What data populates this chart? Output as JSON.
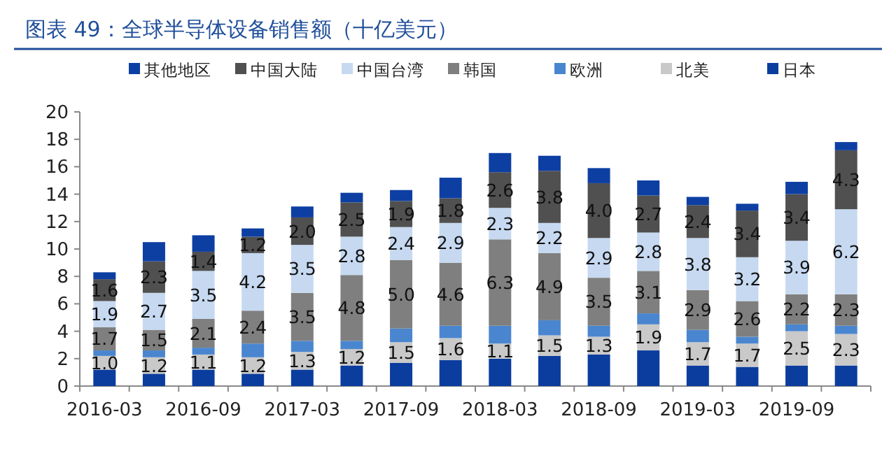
{
  "chart_data": {
    "type": "bar",
    "title": "图表 49：全球半导体设备销售额（十亿美元）",
    "stacked": true,
    "legend": "top",
    "categories": [
      "2016-03",
      null,
      "2016-09",
      null,
      "2017-03",
      null,
      "2017-09",
      null,
      "2018-03",
      null,
      "2018-09",
      null,
      "2019-03",
      null,
      "2019-09",
      null
    ],
    "ylim": [
      0,
      20
    ],
    "yticks": [
      0,
      2,
      4,
      6,
      8,
      10,
      12,
      14,
      16,
      18,
      20
    ],
    "series": [
      {
        "name": "日本",
        "color": "#0b3d9e",
        "values": [
          1.2,
          0.9,
          1.2,
          0.9,
          1.2,
          1.5,
          1.7,
          1.9,
          2.0,
          2.2,
          2.3,
          2.6,
          1.5,
          1.4,
          1.5,
          1.5
        ]
      },
      {
        "name": "北美",
        "color": "#c9c9c9",
        "values": [
          1.0,
          1.2,
          1.1,
          1.2,
          1.3,
          1.2,
          1.5,
          1.6,
          1.1,
          1.5,
          1.3,
          1.9,
          1.7,
          1.7,
          2.5,
          2.3
        ],
        "value_labels": [
          "1.0",
          "1.2",
          "1.1",
          "1.2",
          "1.3",
          "1.2",
          "1.5",
          "1.6",
          "1.1",
          "1.5",
          "1.3",
          "1.9",
          "1.7",
          "1.7",
          "2.5",
          "2.3"
        ]
      },
      {
        "name": "欧洲",
        "color": "#4a86cf",
        "values": [
          0.4,
          0.5,
          0.5,
          1.0,
          0.8,
          0.6,
          1.0,
          0.9,
          1.3,
          1.1,
          0.8,
          0.8,
          0.9,
          0.5,
          0.5,
          0.6
        ]
      },
      {
        "name": "韩国",
        "color": "#7f7f7f",
        "values": [
          1.7,
          1.5,
          2.1,
          2.4,
          3.5,
          4.8,
          5.0,
          4.6,
          6.3,
          4.9,
          3.5,
          3.1,
          2.9,
          2.6,
          2.2,
          2.3
        ],
        "value_labels": [
          "1.7",
          "1.5",
          "2.1",
          "2.4",
          "3.5",
          "4.8",
          "5.0",
          "4.6",
          "6.3",
          "4.9",
          "3.5",
          "3.1",
          "2.9",
          "2.6",
          "2.2",
          "2.3"
        ]
      },
      {
        "name": "中国台湾",
        "color": "#c6d9f1",
        "values": [
          1.9,
          2.7,
          3.5,
          4.2,
          3.5,
          2.8,
          2.4,
          2.9,
          2.3,
          2.2,
          2.9,
          2.8,
          3.8,
          3.2,
          3.9,
          6.2
        ],
        "value_labels": [
          "1.9",
          "2.7",
          "3.5",
          "4.2",
          "3.5",
          "2.8",
          "2.4",
          "2.9",
          "2.3",
          "2.2",
          "2.9",
          "2.8",
          "3.8",
          "3.2",
          "3.9",
          "6.2"
        ]
      },
      {
        "name": "中国大陆",
        "color": "#505050",
        "values": [
          1.6,
          2.3,
          1.4,
          1.2,
          2.0,
          2.5,
          1.9,
          1.8,
          2.6,
          3.8,
          4.0,
          2.7,
          2.4,
          3.4,
          3.4,
          4.3
        ],
        "value_labels": [
          "1.6",
          "2.3",
          "1.4",
          "1.2",
          "2.0",
          "2.5",
          "1.9",
          "1.8",
          "2.6",
          "3.8",
          "4.0",
          "2.7",
          "2.4",
          "3.4",
          "3.4",
          "4.3"
        ]
      },
      {
        "name": "其他地区",
        "color": "#0d3fa3",
        "values": [
          0.5,
          1.4,
          1.2,
          0.6,
          0.8,
          0.7,
          0.8,
          1.5,
          1.4,
          1.1,
          1.1,
          1.1,
          0.6,
          0.5,
          0.9,
          0.6
        ]
      }
    ]
  }
}
